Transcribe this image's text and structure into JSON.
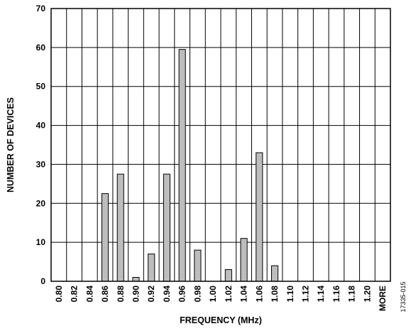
{
  "chart_data": {
    "type": "bar",
    "title": "",
    "xlabel": "FREQUENCY (MHz)",
    "ylabel": "NUMBER OF DEVICES",
    "ylim": [
      0,
      70
    ],
    "y_ticks": [
      "0",
      "10",
      "20",
      "30",
      "40",
      "50",
      "60",
      "70"
    ],
    "categories": [
      "0.80",
      "0.82",
      "0.84",
      "0.86",
      "0.88",
      "0.90",
      "0.92",
      "0.94",
      "0.96",
      "0.98",
      "1.00",
      "1.02",
      "1.04",
      "1.06",
      "1.08",
      "1.10",
      "1.12",
      "1.14",
      "1.16",
      "1.18",
      "1.20",
      "MORE"
    ],
    "values": [
      0,
      0,
      0,
      22.5,
      27.5,
      1,
      7,
      27.5,
      59.5,
      8,
      0,
      3,
      11,
      33,
      4,
      0,
      0,
      0,
      0,
      0,
      0,
      0
    ],
    "grid": true,
    "bar_color": "#bdbdbd",
    "bar_edge_color": "#000000"
  },
  "figure_id": "17335-015"
}
